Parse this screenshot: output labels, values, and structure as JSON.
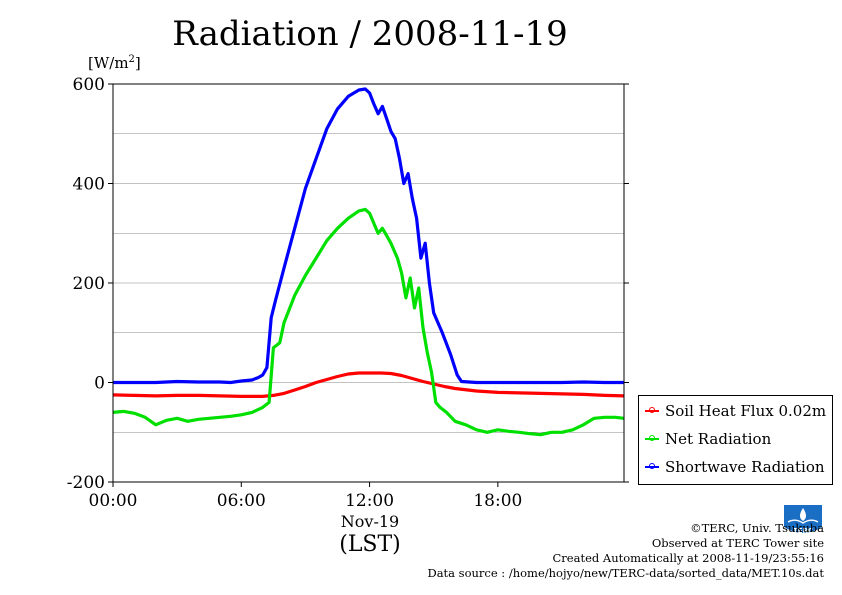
{
  "page": {
    "title": "Radiation / 2008-11-19",
    "unit_label": "[W/m",
    "unit_sup": "2",
    "unit_close": "]",
    "x_date_label": "Nov-19",
    "x_unit_label": "(LST)"
  },
  "credits": {
    "line1": "©TERC, Univ. Tsukuba",
    "line2": "Observed at TERC Tower site",
    "line3": "Created Automatically at 2008-11-19/23:55:16",
    "line4": "Data source : /home/hojyo/new/TERC-data/sorted_data/MET.10s.dat"
  },
  "logo": {
    "icon": "terc-logo-icon",
    "text": "TERC",
    "color": "#1a6fc4"
  },
  "chart_data": {
    "type": "line",
    "title": "Radiation / 2008-11-19",
    "xlabel": "(LST)",
    "ylabel": "[W/m2]",
    "xlim": [
      0,
      23.9
    ],
    "ylim": [
      -200,
      600
    ],
    "x_ticks": [
      {
        "value": 0,
        "label": "00:00"
      },
      {
        "value": 6,
        "label": "06:00"
      },
      {
        "value": 12,
        "label": "12:00"
      },
      {
        "value": 18,
        "label": "18:00"
      }
    ],
    "y_ticks": [
      {
        "value": 600,
        "label": "600"
      },
      {
        "value": 400,
        "label": "400"
      },
      {
        "value": 200,
        "label": "200"
      },
      {
        "value": 0,
        "label": "0"
      },
      {
        "value": -200,
        "label": "-200"
      }
    ],
    "y_gridlines": [
      500,
      400,
      300,
      200,
      100,
      0,
      -100
    ],
    "legend_position": "bottom-right-outside",
    "series": [
      {
        "name": "Soil Heat Flux 0.02m",
        "color": "#ff0000",
        "points": [
          [
            0,
            -25
          ],
          [
            1,
            -26
          ],
          [
            2,
            -27
          ],
          [
            3,
            -26
          ],
          [
            4,
            -26
          ],
          [
            5,
            -27
          ],
          [
            6,
            -28
          ],
          [
            7,
            -28
          ],
          [
            7.5,
            -26
          ],
          [
            8,
            -22
          ],
          [
            8.5,
            -15
          ],
          [
            9,
            -8
          ],
          [
            9.5,
            0
          ],
          [
            10,
            6
          ],
          [
            10.5,
            12
          ],
          [
            11,
            17
          ],
          [
            11.5,
            19
          ],
          [
            12,
            19
          ],
          [
            12.5,
            19
          ],
          [
            13,
            18
          ],
          [
            13.5,
            14
          ],
          [
            14,
            8
          ],
          [
            14.5,
            2
          ],
          [
            15,
            -3
          ],
          [
            15.5,
            -8
          ],
          [
            16,
            -12
          ],
          [
            17,
            -17
          ],
          [
            18,
            -20
          ],
          [
            19,
            -21
          ],
          [
            20,
            -22
          ],
          [
            21,
            -23
          ],
          [
            22,
            -24
          ],
          [
            23,
            -26
          ],
          [
            23.9,
            -27
          ]
        ]
      },
      {
        "name": "Net Radiation",
        "color": "#00e000",
        "points": [
          [
            0,
            -60
          ],
          [
            0.5,
            -58
          ],
          [
            1,
            -62
          ],
          [
            1.5,
            -70
          ],
          [
            2,
            -85
          ],
          [
            2.5,
            -76
          ],
          [
            3,
            -72
          ],
          [
            3.5,
            -78
          ],
          [
            4,
            -74
          ],
          [
            4.5,
            -72
          ],
          [
            5,
            -70
          ],
          [
            5.5,
            -68
          ],
          [
            6,
            -65
          ],
          [
            6.5,
            -60
          ],
          [
            7,
            -50
          ],
          [
            7.3,
            -40
          ],
          [
            7.5,
            70
          ],
          [
            7.8,
            80
          ],
          [
            8,
            120
          ],
          [
            8.5,
            175
          ],
          [
            9,
            215
          ],
          [
            9.5,
            250
          ],
          [
            10,
            285
          ],
          [
            10.5,
            310
          ],
          [
            11,
            330
          ],
          [
            11.5,
            345
          ],
          [
            11.8,
            348
          ],
          [
            12,
            340
          ],
          [
            12.2,
            320
          ],
          [
            12.4,
            300
          ],
          [
            12.6,
            310
          ],
          [
            12.8,
            295
          ],
          [
            13,
            280
          ],
          [
            13.3,
            250
          ],
          [
            13.5,
            220
          ],
          [
            13.7,
            170
          ],
          [
            13.9,
            210
          ],
          [
            14.1,
            150
          ],
          [
            14.3,
            190
          ],
          [
            14.5,
            110
          ],
          [
            14.7,
            60
          ],
          [
            14.9,
            20
          ],
          [
            15.1,
            -40
          ],
          [
            15.3,
            -50
          ],
          [
            15.6,
            -60
          ],
          [
            16,
            -78
          ],
          [
            16.5,
            -85
          ],
          [
            17,
            -95
          ],
          [
            17.5,
            -100
          ],
          [
            18,
            -95
          ],
          [
            18.5,
            -98
          ],
          [
            19,
            -100
          ],
          [
            19.5,
            -103
          ],
          [
            20,
            -105
          ],
          [
            20.5,
            -100
          ],
          [
            21,
            -100
          ],
          [
            21.5,
            -95
          ],
          [
            22,
            -85
          ],
          [
            22.5,
            -72
          ],
          [
            23,
            -70
          ],
          [
            23.5,
            -70
          ],
          [
            23.9,
            -72
          ]
        ]
      },
      {
        "name": "Shortwave Radiation",
        "color": "#0000ff",
        "points": [
          [
            0,
            0
          ],
          [
            2,
            0
          ],
          [
            3,
            2
          ],
          [
            4,
            1
          ],
          [
            5,
            1
          ],
          [
            5.5,
            0
          ],
          [
            6,
            3
          ],
          [
            6.5,
            5
          ],
          [
            6.8,
            10
          ],
          [
            7,
            15
          ],
          [
            7.2,
            30
          ],
          [
            7.4,
            130
          ],
          [
            7.6,
            165
          ],
          [
            8,
            230
          ],
          [
            8.5,
            310
          ],
          [
            9,
            390
          ],
          [
            9.5,
            450
          ],
          [
            10,
            510
          ],
          [
            10.5,
            550
          ],
          [
            11,
            575
          ],
          [
            11.5,
            588
          ],
          [
            11.8,
            590
          ],
          [
            12,
            582
          ],
          [
            12.2,
            560
          ],
          [
            12.4,
            540
          ],
          [
            12.6,
            555
          ],
          [
            12.8,
            530
          ],
          [
            13,
            505
          ],
          [
            13.2,
            490
          ],
          [
            13.4,
            450
          ],
          [
            13.6,
            400
          ],
          [
            13.8,
            420
          ],
          [
            14,
            370
          ],
          [
            14.2,
            330
          ],
          [
            14.4,
            250
          ],
          [
            14.6,
            280
          ],
          [
            14.8,
            200
          ],
          [
            15,
            140
          ],
          [
            15.4,
            100
          ],
          [
            15.8,
            55
          ],
          [
            16.1,
            15
          ],
          [
            16.3,
            2
          ],
          [
            17,
            0
          ],
          [
            18,
            0
          ],
          [
            19,
            0
          ],
          [
            20,
            0
          ],
          [
            21,
            0
          ],
          [
            22,
            1
          ],
          [
            23,
            0
          ],
          [
            23.9,
            0
          ]
        ]
      }
    ]
  }
}
